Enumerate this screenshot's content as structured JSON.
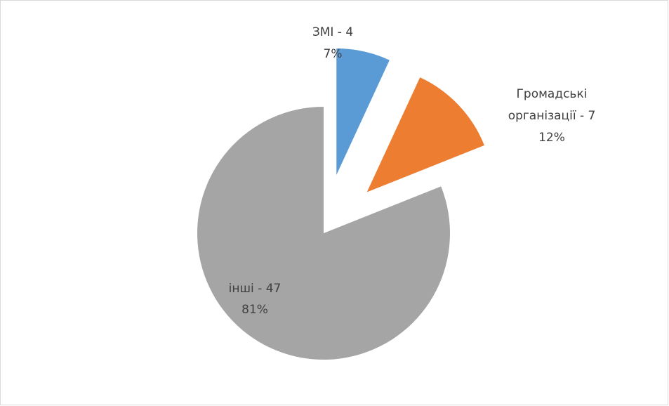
{
  "chart_data": {
    "type": "pie",
    "values": [
      4,
      7,
      47
    ],
    "colors": [
      "#5b9bd5",
      "#ed7d31",
      "#a5a5a5"
    ],
    "exploded": [
      true,
      true,
      false
    ],
    "data_labels": [
      [
        "ЗМІ -  4",
        "7%"
      ],
      [
        "Громадські",
        "організації -  7",
        "12%"
      ],
      [
        "інші -  47",
        "81%"
      ]
    ]
  }
}
